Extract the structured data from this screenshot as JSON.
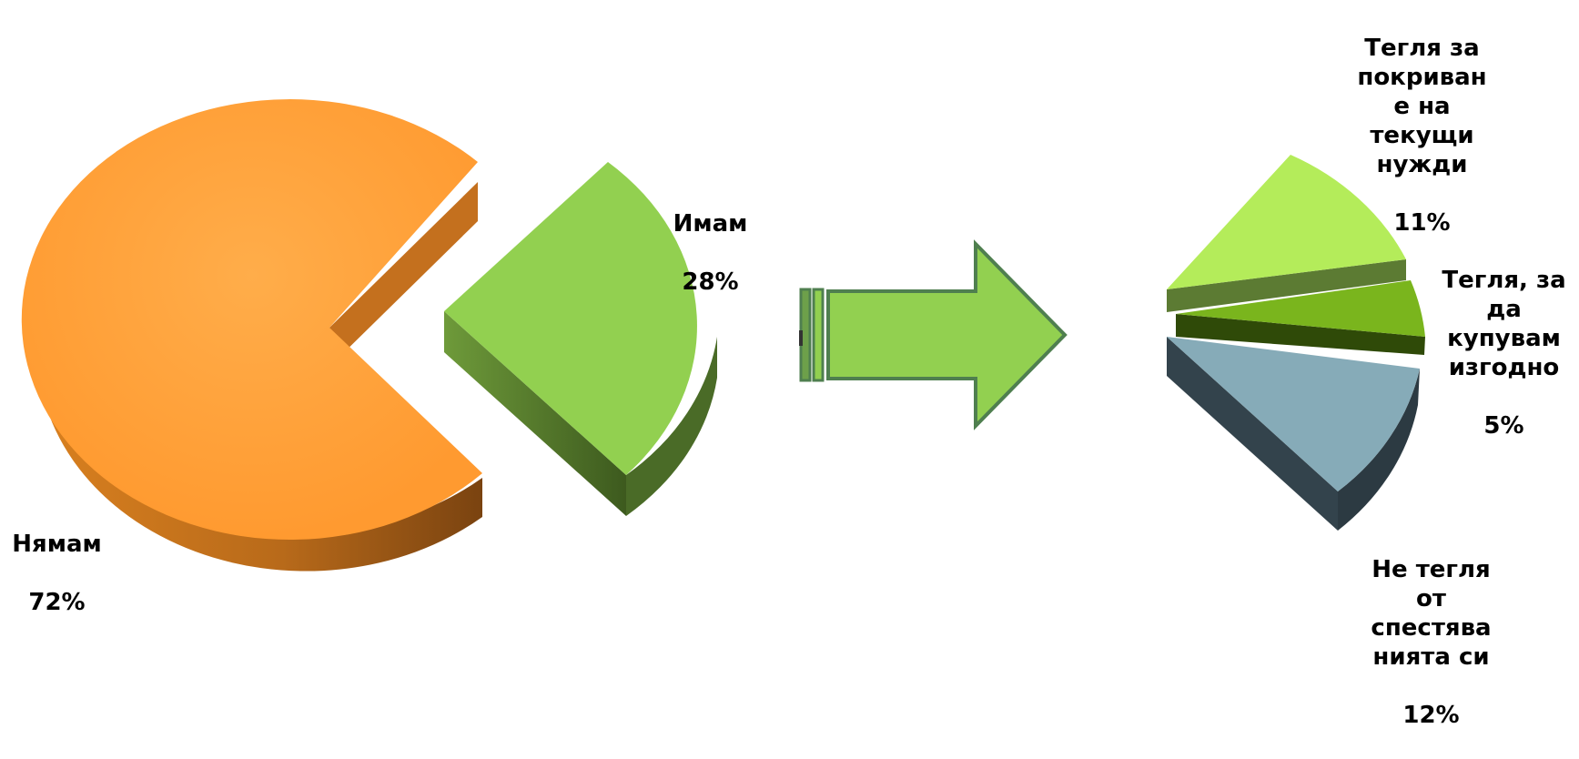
{
  "colors": {
    "nyamam": "#FF9E35",
    "imam": "#92D050",
    "arrow": "#92D050",
    "arrow_border": "#4F7F4F",
    "tekushti": "#B4EC5A",
    "izgodno": "#7AB51D",
    "ne_tegla": "#86ABB8"
  },
  "chart_data": [
    {
      "type": "pie",
      "subtype": "3d-exploded",
      "categories": [
        "Нямам",
        "Имам"
      ],
      "values": [
        72,
        28
      ],
      "unit": "%",
      "labels": {
        "nyamam": {
          "name": "Нямам",
          "value": "72%"
        },
        "imam": {
          "name": "Имам",
          "value": "28%"
        }
      }
    },
    {
      "type": "pie",
      "subtype": "3d-exploded-partial",
      "categories": [
        "Тегля за покриване на текущи нужди",
        "Тегля, за да купувам изгодно",
        "Не тегля от спестяванията си"
      ],
      "values": [
        11,
        5,
        12
      ],
      "unit": "%",
      "labels": {
        "tekushti": {
          "name": "Тегля за\nпокриван\nе на\nтекущи\nнужди",
          "value": "11%"
        },
        "izgodno": {
          "name": "Тегля, за\nда\nкупувам\nизгодно",
          "value": "5%"
        },
        "ne_tegla": {
          "name": "Не тегля\nот\nспестява\nнията си",
          "value": "12%"
        }
      }
    }
  ],
  "connector": {
    "icon": "right-arrow-icon"
  }
}
